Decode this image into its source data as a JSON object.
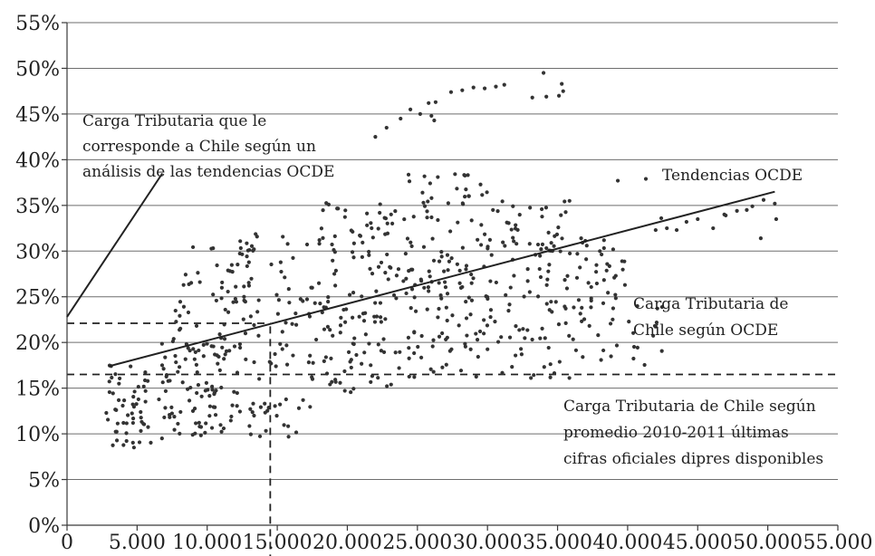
{
  "chart_data": {
    "type": "scatter",
    "title": "",
    "xlabel": "",
    "ylabel": "",
    "xlim": [
      0,
      55000
    ],
    "ylim": [
      0,
      55
    ],
    "grid": "horizontal",
    "colors": {
      "points": "#333333",
      "lines": "#222222",
      "grid": "#6e6e6e"
    },
    "x_tick_labels": [
      "0",
      "5.000",
      "10.000",
      "15.000",
      "20.000",
      "25.000",
      "30.000",
      "35.000",
      "40.000",
      "45.000",
      "50.000",
      "55.000"
    ],
    "x_ticks": [
      0,
      5000,
      10000,
      15000,
      20000,
      25000,
      30000,
      35000,
      40000,
      45000,
      50000,
      55000
    ],
    "y_tick_labels": [
      "0%",
      "5%",
      "10%",
      "15%",
      "20%",
      "25%",
      "30%",
      "35%",
      "40%",
      "45%",
      "50%",
      "55%"
    ],
    "y_ticks": [
      0,
      5,
      10,
      15,
      20,
      25,
      30,
      35,
      40,
      45,
      50,
      55
    ],
    "trend_line": {
      "name": "Tendencias OCDE",
      "from": [
        3000,
        17.4
      ],
      "to": [
        50500,
        36.5
      ]
    },
    "reference_lines": [
      {
        "orientation": "horizontal",
        "y": 22.1,
        "x_range": [
          0,
          14500
        ],
        "style": "dashed"
      },
      {
        "orientation": "horizontal",
        "y": 16.5,
        "x_range": [
          0,
          55000
        ],
        "style": "dashed"
      },
      {
        "orientation": "vertical",
        "x": 14500,
        "y_range": [
          -4,
          22.1
        ],
        "style": "dashed"
      }
    ],
    "annotations": [
      {
        "lines": [
          "Carga Tributaria que le",
          "corresponde a Chile según un",
          "análisis de las tendencias OCDE"
        ],
        "pointer_from": [
          6800,
          38.5
        ],
        "pointer_to": [
          0,
          22.8
        ]
      },
      {
        "lines": [
          "Tendencias OCDE"
        ]
      },
      {
        "lines": [
          "Carga Tributaria de",
          "Chile según OCDE"
        ]
      },
      {
        "lines": [
          "Carga Tributaria de Chile según",
          "promedio 2010-2011 últimas",
          "cifras oficiales dipres disponibles"
        ]
      }
    ],
    "series": [
      {
        "clusters": [
          {
            "x": [
              2800,
              6000
            ],
            "y": [
              8.5,
              17.5
            ],
            "n": 55
          },
          {
            "x": [
              6500,
              11000
            ],
            "y": [
              9.5,
              20.0
            ],
            "n": 75
          },
          {
            "x": [
              7500,
              13000
            ],
            "y": [
              18.0,
              30.5
            ],
            "n": 55
          },
          {
            "x": [
              11000,
              18000
            ],
            "y": [
              9.5,
              32.0
            ],
            "n": 110
          },
          {
            "x": [
              18000,
              24000
            ],
            "y": [
              14.5,
              36.0
            ],
            "n": 130
          },
          {
            "x": [
              24000,
              30000
            ],
            "y": [
              16.0,
              38.5
            ],
            "n": 140
          },
          {
            "x": [
              30000,
              36000
            ],
            "y": [
              16.0,
              35.5
            ],
            "n": 110
          },
          {
            "x": [
              36000,
              40500
            ],
            "y": [
              18.0,
              31.5
            ],
            "n": 55
          },
          {
            "x": [
              40000,
              43000
            ],
            "y": [
              17.0,
              24.5
            ],
            "n": 12
          }
        ],
        "points": [
          [
            22000,
            42.5
          ],
          [
            22800,
            43.5
          ],
          [
            23800,
            44.5
          ],
          [
            24500,
            45.5
          ],
          [
            25200,
            45.0
          ],
          [
            25800,
            46.2
          ],
          [
            26300,
            46.3
          ],
          [
            26000,
            44.8
          ],
          [
            26200,
            44.3
          ],
          [
            27400,
            47.4
          ],
          [
            28200,
            47.6
          ],
          [
            29000,
            47.9
          ],
          [
            29800,
            47.8
          ],
          [
            30600,
            48.0
          ],
          [
            31200,
            48.2
          ],
          [
            33200,
            46.8
          ],
          [
            34200,
            46.9
          ],
          [
            34000,
            49.5
          ],
          [
            35100,
            47.0
          ],
          [
            35300,
            48.3
          ],
          [
            35400,
            47.5
          ],
          [
            39300,
            37.7
          ],
          [
            41300,
            37.9
          ],
          [
            42400,
            33.6
          ],
          [
            42800,
            32.5
          ],
          [
            43500,
            32.3
          ],
          [
            45000,
            33.5
          ],
          [
            46100,
            32.5
          ],
          [
            47000,
            33.9
          ],
          [
            47800,
            34.4
          ],
          [
            48500,
            34.5
          ],
          [
            49700,
            35.6
          ],
          [
            50500,
            35.2
          ],
          [
            50600,
            33.5
          ],
          [
            49500,
            31.4
          ],
          [
            42000,
            32.3
          ],
          [
            44200,
            33.2
          ],
          [
            48900,
            34.9
          ],
          [
            46900,
            34.0
          ]
        ]
      }
    ]
  }
}
